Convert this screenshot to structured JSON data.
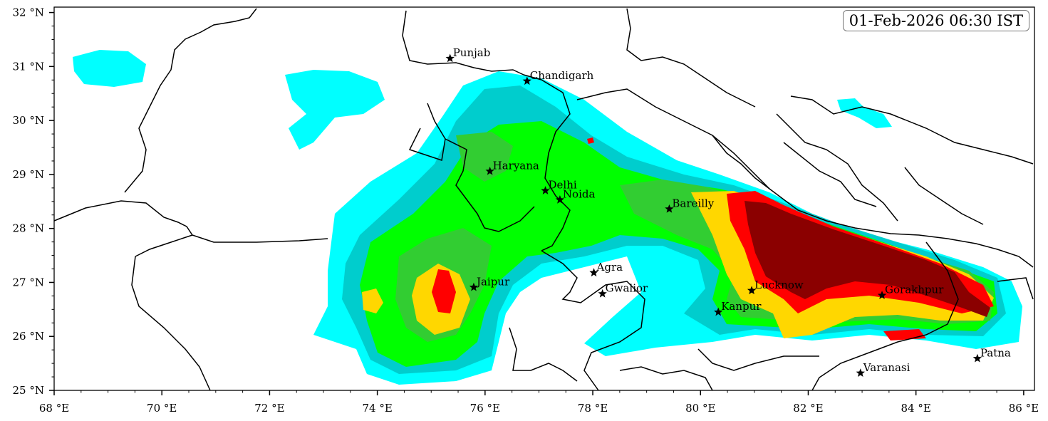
{
  "timestamp": "01-Feb-2026 06:30 IST",
  "axes": {
    "x_ticks": [
      "68 °E",
      "70 °E",
      "72 °E",
      "74 °E",
      "76 °E",
      "78 °E",
      "80 °E",
      "82 °E",
      "84 °E",
      "86 °E"
    ],
    "y_ticks": [
      "25 °N",
      "26 °N",
      "27 °N",
      "28 °N",
      "29 °N",
      "30 °N",
      "31 °N",
      "32 °N"
    ],
    "lon_range": [
      68,
      86.2
    ],
    "lat_range": [
      25,
      32.1
    ]
  },
  "cities": [
    {
      "name": "Punjab",
      "lon": 75.35,
      "lat": 31.15
    },
    {
      "name": "Chandigarh",
      "lon": 76.78,
      "lat": 30.73
    },
    {
      "name": "Haryana",
      "lon": 76.09,
      "lat": 29.06
    },
    {
      "name": "Delhi",
      "lon": 77.12,
      "lat": 28.7
    },
    {
      "name": "Noida",
      "lon": 77.39,
      "lat": 28.53
    },
    {
      "name": "Bareilly",
      "lon": 79.42,
      "lat": 28.36
    },
    {
      "name": "Agra",
      "lon": 78.02,
      "lat": 27.18
    },
    {
      "name": "Jaipur",
      "lon": 75.79,
      "lat": 26.91
    },
    {
      "name": "Gwalior",
      "lon": 78.18,
      "lat": 26.79
    },
    {
      "name": "Lucknow",
      "lon": 80.95,
      "lat": 26.85
    },
    {
      "name": "Kanpur",
      "lon": 80.33,
      "lat": 26.45
    },
    {
      "name": "Gorakhpur",
      "lon": 83.37,
      "lat": 26.76
    },
    {
      "name": "Varanasi",
      "lon": 82.97,
      "lat": 25.32
    },
    {
      "name": "Patna",
      "lon": 85.14,
      "lat": 25.59
    }
  ],
  "colors": {
    "light_cyan": "#00ffff",
    "dark_cyan": "#00cdcd",
    "green": "#00ff00",
    "mid_green": "#32cd32",
    "yellow": "#ffd700",
    "red": "#ff0000",
    "dark_red": "#8b0000"
  }
}
